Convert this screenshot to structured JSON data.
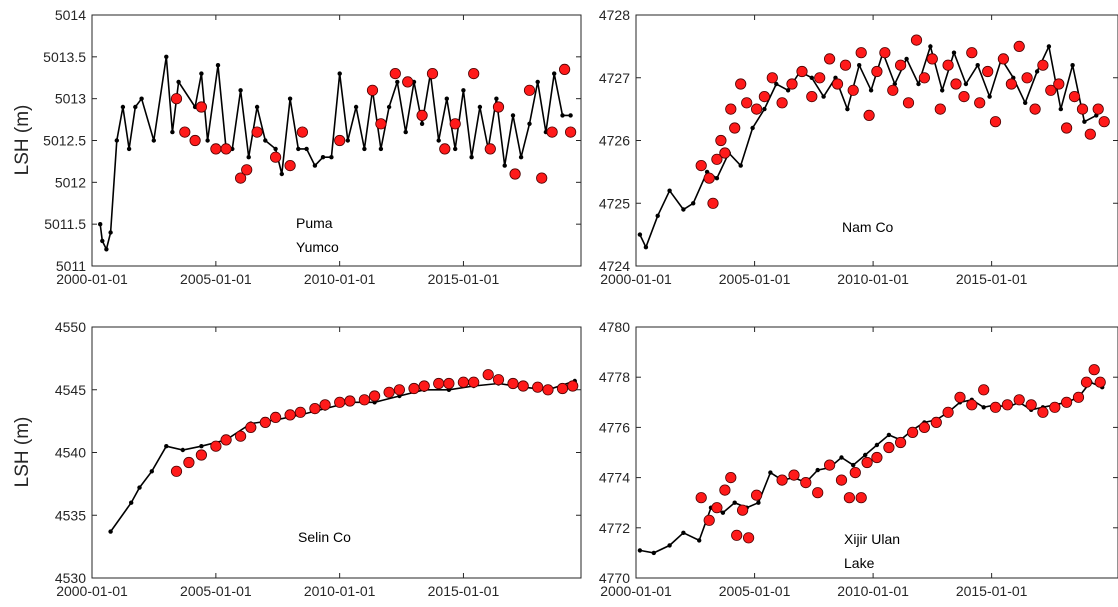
{
  "colors": {
    "line": "#000000",
    "marker_fill": "#ff1a1a",
    "marker_edge": "#4d0000",
    "axis": "#262626"
  },
  "chart_data": [
    {
      "type": "scatter",
      "panel": "top-left",
      "ylabel": "LSH (m)",
      "xlim": [
        "2000-01-01",
        "2019-10-01"
      ],
      "ylim": [
        5011,
        5014
      ],
      "xticks": [
        "2000-01-01",
        "2005-01-01",
        "2010-01-01",
        "2015-01-01"
      ],
      "yticks": [
        "5011",
        "5011.5",
        "5012",
        "5012.5",
        "5013",
        "5013.5",
        "5014"
      ],
      "annotation": [
        "Puma",
        "Yumco"
      ],
      "series": [
        {
          "style": "line",
          "x": [
            "2000-05-01",
            "2000-06-01",
            "2000-08-01",
            "2000-10-01",
            "2001-01-01",
            "2001-04-01",
            "2001-07-01",
            "2001-10-01",
            "2002-01-01",
            "2002-07-01",
            "2003-01-01",
            "2003-04-01",
            "2003-07-01",
            "2004-03-01",
            "2004-06-01",
            "2004-09-01",
            "2005-02-01",
            "2005-06-01",
            "2005-09-01",
            "2006-01-01",
            "2006-05-01",
            "2006-09-01",
            "2007-01-01",
            "2007-06-01",
            "2007-09-01",
            "2008-01-01",
            "2008-05-01",
            "2008-09-01",
            "2009-01-01",
            "2009-05-01",
            "2009-09-01",
            "2010-01-01",
            "2010-05-01",
            "2010-09-01",
            "2011-01-01",
            "2011-05-01",
            "2011-09-01",
            "2012-01-01",
            "2012-05-01",
            "2012-09-01",
            "2013-01-01",
            "2013-05-01",
            "2013-09-01",
            "2014-01-01",
            "2014-05-01",
            "2014-09-01",
            "2015-01-01",
            "2015-05-01",
            "2015-09-01",
            "2016-01-01",
            "2016-05-01",
            "2016-09-01",
            "2017-01-01",
            "2017-05-01",
            "2017-09-01",
            "2018-01-01",
            "2018-05-01",
            "2018-09-01",
            "2019-01-01",
            "2019-05-01"
          ],
          "y": [
            5011.5,
            5011.3,
            5011.2,
            5011.4,
            5012.5,
            5012.9,
            5012.4,
            5012.9,
            5013.0,
            5012.5,
            5013.5,
            5012.6,
            5013.2,
            5012.9,
            5013.3,
            5012.5,
            5013.4,
            5012.4,
            5012.4,
            5013.1,
            5012.3,
            5012.9,
            5012.5,
            5012.4,
            5012.1,
            5013.0,
            5012.4,
            5012.4,
            5012.2,
            5012.3,
            5012.3,
            5013.3,
            5012.5,
            5012.9,
            5012.4,
            5013.1,
            5012.4,
            5012.9,
            5013.2,
            5012.6,
            5013.2,
            5012.7,
            5013.3,
            5012.5,
            5013.0,
            5012.4,
            5013.1,
            5012.3,
            5012.9,
            5012.4,
            5013.0,
            5012.2,
            5012.8,
            5012.3,
            5012.7,
            5013.2,
            5012.6,
            5013.3,
            5012.8,
            5012.8
          ]
        },
        {
          "style": "marker",
          "x": [
            "2003-06-01",
            "2003-10-01",
            "2004-03-01",
            "2004-06-01",
            "2005-01-01",
            "2005-06-01",
            "2006-01-01",
            "2006-04-01",
            "2006-09-01",
            "2007-06-01",
            "2008-01-01",
            "2008-07-01",
            "2010-01-01",
            "2011-05-01",
            "2011-09-01",
            "2012-04-01",
            "2012-10-01",
            "2013-05-01",
            "2013-10-01",
            "2014-04-01",
            "2014-09-01",
            "2015-06-01",
            "2016-02-01",
            "2016-06-01",
            "2017-02-01",
            "2017-09-01",
            "2018-03-01",
            "2018-08-01",
            "2019-02-01",
            "2019-05-01"
          ],
          "y": [
            5013.0,
            5012.6,
            5012.5,
            5012.9,
            5012.4,
            5012.4,
            5012.05,
            5012.15,
            5012.6,
            5012.3,
            5012.2,
            5012.6,
            5012.5,
            5013.1,
            5012.7,
            5013.3,
            5013.2,
            5012.8,
            5013.3,
            5012.4,
            5012.7,
            5013.3,
            5012.4,
            5012.9,
            5012.1,
            5013.1,
            5012.05,
            5012.6,
            5013.35,
            5012.6
          ]
        }
      ]
    },
    {
      "type": "scatter",
      "panel": "top-right",
      "ylabel": "",
      "xlim": [
        "2000-01-01",
        "2020-05-01"
      ],
      "ylim": [
        4724,
        4728
      ],
      "xticks": [
        "2000-01-01",
        "2005-01-01",
        "2010-01-01",
        "2015-01-01"
      ],
      "yticks": [
        "4724",
        "4725",
        "4726",
        "4727",
        "4728"
      ],
      "annotation": [
        "Nam Co"
      ],
      "series": [
        {
          "style": "line",
          "x": [
            "2000-03-01",
            "2000-06-01",
            "2000-12-01",
            "2001-06-01",
            "2002-01-01",
            "2002-06-01",
            "2003-01-01",
            "2003-06-01",
            "2003-12-01",
            "2004-06-01",
            "2004-12-01",
            "2005-06-01",
            "2005-12-01",
            "2006-06-01",
            "2006-12-01",
            "2007-06-01",
            "2007-12-01",
            "2008-06-01",
            "2008-12-01",
            "2009-06-01",
            "2009-12-01",
            "2010-06-01",
            "2010-12-01",
            "2011-06-01",
            "2011-12-01",
            "2012-06-01",
            "2012-12-01",
            "2013-06-01",
            "2013-12-01",
            "2014-06-01",
            "2014-12-01",
            "2015-06-01",
            "2015-12-01",
            "2016-06-01",
            "2016-12-01",
            "2017-06-01",
            "2017-12-01",
            "2018-06-01",
            "2018-12-01",
            "2019-06-01"
          ],
          "y": [
            4724.5,
            4724.3,
            4724.8,
            4725.2,
            4724.9,
            4725.0,
            4725.5,
            4725.4,
            4725.8,
            4725.6,
            4726.2,
            4726.5,
            4726.9,
            4726.8,
            4727.1,
            4727.0,
            4726.7,
            4727.0,
            4726.5,
            4727.2,
            4726.8,
            4727.4,
            4726.9,
            4727.3,
            4726.9,
            4727.5,
            4726.8,
            4727.4,
            4726.9,
            4727.2,
            4726.7,
            4727.3,
            4727.0,
            4726.6,
            4727.1,
            4727.5,
            4726.5,
            4727.2,
            4726.3,
            4726.4
          ]
        },
        {
          "style": "marker",
          "x": [
            "2002-10-01",
            "2003-02-01",
            "2003-04-01",
            "2003-06-01",
            "2003-08-01",
            "2003-10-01",
            "2004-01-01",
            "2004-03-01",
            "2004-06-01",
            "2004-09-01",
            "2005-02-01",
            "2005-06-01",
            "2005-10-01",
            "2006-03-01",
            "2006-08-01",
            "2007-01-01",
            "2007-06-01",
            "2007-10-01",
            "2008-03-01",
            "2008-07-01",
            "2008-11-01",
            "2009-03-01",
            "2009-07-01",
            "2009-11-01",
            "2010-03-01",
            "2010-07-01",
            "2010-11-01",
            "2011-03-01",
            "2011-07-01",
            "2011-11-01",
            "2012-03-01",
            "2012-07-01",
            "2012-11-01",
            "2013-03-01",
            "2013-07-01",
            "2013-11-01",
            "2014-03-01",
            "2014-07-01",
            "2014-11-01",
            "2015-03-01",
            "2015-07-01",
            "2015-11-01",
            "2016-03-01",
            "2016-07-01",
            "2016-11-01",
            "2017-03-01",
            "2017-07-01",
            "2017-11-01",
            "2018-03-01",
            "2018-07-01",
            "2018-11-01",
            "2019-03-01",
            "2019-07-01",
            "2019-10-01"
          ],
          "y": [
            4725.6,
            4725.4,
            4725.0,
            4725.7,
            4726.0,
            4725.8,
            4726.5,
            4726.2,
            4726.9,
            4726.6,
            4726.5,
            4726.7,
            4727.0,
            4726.6,
            4726.9,
            4727.1,
            4726.7,
            4727.0,
            4727.3,
            4726.9,
            4727.2,
            4726.8,
            4727.4,
            4726.4,
            4727.1,
            4727.4,
            4726.8,
            4727.2,
            4726.6,
            4727.6,
            4727.0,
            4727.3,
            4726.5,
            4727.2,
            4726.9,
            4726.7,
            4727.4,
            4726.6,
            4727.1,
            4726.3,
            4727.3,
            4726.9,
            4727.5,
            4727.0,
            4726.5,
            4727.2,
            4726.8,
            4726.9,
            4726.2,
            4726.7,
            4726.5,
            4726.1,
            4726.5,
            4726.3
          ]
        }
      ]
    },
    {
      "type": "scatter",
      "panel": "bottom-left",
      "ylabel": "LSH (m)",
      "xlim": [
        "2000-01-01",
        "2019-10-01"
      ],
      "ylim": [
        4530,
        4550
      ],
      "xticks": [
        "2000-01-01",
        "2005-01-01",
        "2010-01-01",
        "2015-01-01"
      ],
      "yticks": [
        "4530",
        "4535",
        "4540",
        "4545",
        "4550"
      ],
      "annotation": [
        "Selin Co"
      ],
      "series": [
        {
          "style": "line",
          "x": [
            "2000-10-01",
            "2001-08-01",
            "2001-12-01",
            "2002-06-01",
            "2003-01-01",
            "2003-09-01",
            "2004-06-01",
            "2005-06-01",
            "2006-06-01",
            "2007-06-01",
            "2008-06-01",
            "2009-06-01",
            "2010-06-01",
            "2011-06-01",
            "2012-06-01",
            "2013-06-01",
            "2014-06-01",
            "2015-06-01",
            "2016-06-01",
            "2017-06-01",
            "2018-06-01",
            "2019-07-01"
          ],
          "y": [
            4533.7,
            4536.0,
            4537.2,
            4538.5,
            4540.5,
            4540.2,
            4540.5,
            4541.0,
            4542.3,
            4542.6,
            4543.0,
            4543.5,
            4544.0,
            4544.0,
            4544.5,
            4545.0,
            4545.0,
            4545.3,
            4545.5,
            4545.2,
            4545.0,
            4545.7
          ]
        },
        {
          "style": "marker",
          "x": [
            "2003-06-01",
            "2003-12-01",
            "2004-06-01",
            "2005-01-01",
            "2005-06-01",
            "2006-01-01",
            "2006-06-01",
            "2007-01-01",
            "2007-06-01",
            "2008-01-01",
            "2008-06-01",
            "2009-01-01",
            "2009-06-01",
            "2010-01-01",
            "2010-06-01",
            "2011-01-01",
            "2011-06-01",
            "2012-01-01",
            "2012-06-01",
            "2013-01-01",
            "2013-06-01",
            "2014-01-01",
            "2014-06-01",
            "2015-01-01",
            "2015-06-01",
            "2016-01-01",
            "2016-06-01",
            "2017-01-01",
            "2017-06-01",
            "2018-01-01",
            "2018-06-01",
            "2019-01-01",
            "2019-06-01"
          ],
          "y": [
            4538.5,
            4539.2,
            4539.8,
            4540.5,
            4541.0,
            4541.3,
            4542.0,
            4542.4,
            4542.8,
            4543.0,
            4543.2,
            4543.5,
            4543.8,
            4544.0,
            4544.1,
            4544.2,
            4544.5,
            4544.8,
            4545.0,
            4545.1,
            4545.3,
            4545.5,
            4545.5,
            4545.6,
            4545.6,
            4546.2,
            4545.8,
            4545.5,
            4545.3,
            4545.2,
            4545.0,
            4545.1,
            4545.3
          ]
        }
      ]
    },
    {
      "type": "scatter",
      "panel": "bottom-right",
      "ylabel": "",
      "xlim": [
        "2000-01-01",
        "2020-05-01"
      ],
      "ylim": [
        4770,
        4780
      ],
      "xticks": [
        "2000-01-01",
        "2005-01-01",
        "2010-01-01",
        "2015-01-01"
      ],
      "yticks": [
        "4770",
        "4772",
        "4774",
        "4776",
        "4778",
        "4780"
      ],
      "annotation": [
        "Xijir Ulan",
        "Lake"
      ],
      "series": [
        {
          "style": "line",
          "x": [
            "2000-03-01",
            "2000-10-01",
            "2001-06-01",
            "2002-01-01",
            "2002-09-01",
            "2003-03-01",
            "2003-09-01",
            "2004-03-01",
            "2004-09-01",
            "2005-03-01",
            "2005-09-01",
            "2006-03-01",
            "2006-09-01",
            "2007-03-01",
            "2007-09-01",
            "2008-03-01",
            "2008-09-01",
            "2009-03-01",
            "2009-09-01",
            "2010-03-01",
            "2010-09-01",
            "2011-03-01",
            "2011-09-01",
            "2012-03-01",
            "2012-09-01",
            "2013-03-01",
            "2013-09-01",
            "2014-03-01",
            "2014-09-01",
            "2015-03-01",
            "2015-09-01",
            "2016-03-01",
            "2016-09-01",
            "2017-03-01",
            "2017-09-01",
            "2018-03-01",
            "2018-09-01",
            "2019-03-01",
            "2019-09-01"
          ],
          "y": [
            4771.1,
            4771.0,
            4771.3,
            4771.8,
            4771.5,
            4772.8,
            4772.6,
            4773.0,
            4772.8,
            4773.0,
            4774.2,
            4773.9,
            4774.0,
            4773.8,
            4774.3,
            4774.4,
            4774.8,
            4774.5,
            4774.9,
            4775.3,
            4775.7,
            4775.5,
            4775.9,
            4776.2,
            4776.3,
            4776.6,
            4777.0,
            4777.1,
            4776.8,
            4776.9,
            4776.8,
            4777.0,
            4776.7,
            4776.8,
            4776.9,
            4777.0,
            4777.2,
            4777.8,
            4777.6
          ]
        },
        {
          "style": "marker",
          "x": [
            "2002-10-01",
            "2003-02-01",
            "2003-06-01",
            "2003-10-01",
            "2004-01-01",
            "2004-04-01",
            "2004-07-01",
            "2004-10-01",
            "2005-02-01",
            "2006-03-01",
            "2006-09-01",
            "2007-03-01",
            "2007-09-01",
            "2008-03-01",
            "2008-09-01",
            "2009-01-01",
            "2009-04-01",
            "2009-07-01",
            "2009-10-01",
            "2010-03-01",
            "2010-09-01",
            "2011-03-01",
            "2011-09-01",
            "2012-03-01",
            "2012-09-01",
            "2013-03-01",
            "2013-09-01",
            "2014-03-01",
            "2014-09-01",
            "2015-03-01",
            "2015-09-01",
            "2016-03-01",
            "2016-09-01",
            "2017-03-01",
            "2017-09-01",
            "2018-03-01",
            "2018-09-01",
            "2019-01-01",
            "2019-05-01",
            "2019-08-01"
          ],
          "y": [
            4773.2,
            4772.3,
            4772.8,
            4773.5,
            4774.0,
            4771.7,
            4772.7,
            4771.6,
            4773.3,
            4773.9,
            4774.1,
            4773.8,
            4773.4,
            4774.5,
            4773.9,
            4773.2,
            4774.2,
            4773.2,
            4774.6,
            4774.8,
            4775.2,
            4775.4,
            4775.8,
            4776.0,
            4776.2,
            4776.6,
            4777.2,
            4776.9,
            4777.5,
            4776.8,
            4776.9,
            4777.1,
            4776.9,
            4776.6,
            4776.8,
            4777.0,
            4777.2,
            4777.8,
            4778.3,
            4777.8
          ]
        }
      ]
    }
  ]
}
